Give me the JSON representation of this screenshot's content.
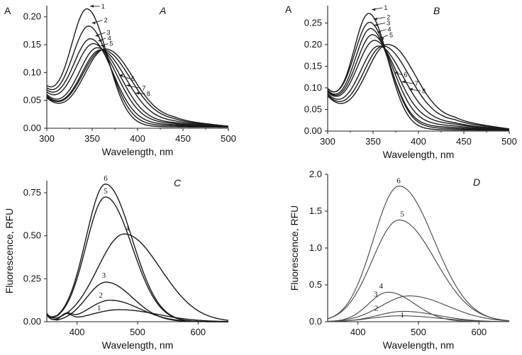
{
  "chart_data": [
    {
      "type": "line",
      "panel": "A",
      "title": "",
      "xlabel": "Wavelength, nm",
      "ylabel": "A",
      "xlim": [
        300,
        500
      ],
      "ylim": [
        0.0,
        0.22
      ],
      "xticks": [
        300,
        350,
        400,
        450,
        500
      ],
      "xtick_labels": [
        "300",
        "350",
        "400",
        "450",
        "500"
      ],
      "yticks": [
        0.0,
        0.05,
        0.1,
        0.15,
        0.2
      ],
      "ytick_labels": [
        "0.00",
        "0.05",
        "0.10",
        "0.15",
        "0.20"
      ],
      "series": [
        {
          "name": "1",
          "peak_x": 345,
          "peak_y": 0.222,
          "width": 19,
          "base": 0.066,
          "tail_amp": 0.0,
          "tail_center": 400,
          "tail_width": 30
        },
        {
          "name": "2",
          "peak_x": 347,
          "peak_y": 0.191,
          "width": 20,
          "base": 0.063,
          "tail_amp": 0.002,
          "tail_center": 400,
          "tail_width": 30
        },
        {
          "name": "3",
          "peak_x": 349,
          "peak_y": 0.168,
          "width": 21,
          "base": 0.06,
          "tail_amp": 0.004,
          "tail_center": 398,
          "tail_width": 30
        },
        {
          "name": "4",
          "peak_x": 352,
          "peak_y": 0.159,
          "width": 22,
          "base": 0.057,
          "tail_amp": 0.006,
          "tail_center": 398,
          "tail_width": 30
        },
        {
          "name": "5",
          "peak_x": 356,
          "peak_y": 0.151,
          "width": 22,
          "base": 0.055,
          "tail_amp": 0.008,
          "tail_center": 396,
          "tail_width": 30
        },
        {
          "name": "6",
          "peak_x": 359,
          "peak_y": 0.145,
          "width": 23,
          "base": 0.053,
          "tail_amp": 0.012,
          "tail_center": 394,
          "tail_width": 28
        },
        {
          "name": "7",
          "peak_x": 361,
          "peak_y": 0.143,
          "width": 24,
          "base": 0.051,
          "tail_amp": 0.016,
          "tail_center": 394,
          "tail_width": 27
        },
        {
          "name": "8",
          "peak_x": 363,
          "peak_y": 0.141,
          "width": 24,
          "base": 0.05,
          "tail_amp": 0.02,
          "tail_center": 392,
          "tail_width": 27
        }
      ],
      "labels": [
        {
          "name": "1",
          "tx": 360,
          "ty": 0.215,
          "ax": 346,
          "ay": 0.219
        },
        {
          "name": "2",
          "tx": 363,
          "ty": 0.19,
          "ax": 348,
          "ay": 0.189
        },
        {
          "name": "3",
          "tx": 366,
          "ty": 0.168,
          "ax": 352,
          "ay": 0.166
        },
        {
          "name": "4",
          "tx": 367,
          "ty": 0.158,
          "ax": 355,
          "ay": 0.157
        },
        {
          "name": "5",
          "tx": 369,
          "ty": 0.148,
          "ax": 358,
          "ay": 0.148
        },
        {
          "name": "6",
          "tx": 393,
          "ty": 0.085,
          "ax": 378,
          "ay": 0.095
        },
        {
          "name": "7",
          "tx": 405,
          "ty": 0.068,
          "ax": 386,
          "ay": 0.077
        },
        {
          "name": "8",
          "tx": 410,
          "ty": 0.058,
          "ax": 396,
          "ay": 0.063
        }
      ]
    },
    {
      "type": "line",
      "panel": "B",
      "title": "",
      "xlabel": "Wavelength, nm",
      "ylabel": "A",
      "xlim": [
        300,
        500
      ],
      "ylim": [
        0.0,
        0.29
      ],
      "xticks": [
        300,
        350,
        400,
        450,
        500
      ],
      "xtick_labels": [
        "300",
        "350",
        "400",
        "450",
        "500"
      ],
      "yticks": [
        0.0,
        0.05,
        0.1,
        0.15,
        0.2,
        0.25
      ],
      "ytick_labels": [
        "0.00",
        "0.05",
        "0.10",
        "0.15",
        "0.20",
        "0.25"
      ],
      "series": [
        {
          "name": "1",
          "peak_x": 346,
          "peak_y": 0.284,
          "width": 18,
          "base": 0.09,
          "tail_amp": 0.0,
          "tail_center": 400,
          "tail_width": 30
        },
        {
          "name": "2",
          "peak_x": 347,
          "peak_y": 0.263,
          "width": 19,
          "base": 0.088,
          "tail_amp": 0.003,
          "tail_center": 398,
          "tail_width": 30
        },
        {
          "name": "3",
          "peak_x": 348,
          "peak_y": 0.248,
          "width": 19,
          "base": 0.086,
          "tail_amp": 0.006,
          "tail_center": 398,
          "tail_width": 30
        },
        {
          "name": "4",
          "peak_x": 350,
          "peak_y": 0.233,
          "width": 20,
          "base": 0.084,
          "tail_amp": 0.01,
          "tail_center": 396,
          "tail_width": 30
        },
        {
          "name": "5",
          "peak_x": 352,
          "peak_y": 0.218,
          "width": 21,
          "base": 0.082,
          "tail_amp": 0.015,
          "tail_center": 394,
          "tail_width": 30
        },
        {
          "name": "6",
          "peak_x": 356,
          "peak_y": 0.203,
          "width": 22,
          "base": 0.08,
          "tail_amp": 0.02,
          "tail_center": 392,
          "tail_width": 28
        },
        {
          "name": "7",
          "peak_x": 360,
          "peak_y": 0.197,
          "width": 23,
          "base": 0.078,
          "tail_amp": 0.028,
          "tail_center": 390,
          "tail_width": 28
        },
        {
          "name": "8",
          "peak_x": 364,
          "peak_y": 0.193,
          "width": 24,
          "base": 0.076,
          "tail_amp": 0.035,
          "tail_center": 388,
          "tail_width": 27
        }
      ],
      "labels": [
        {
          "name": "1",
          "tx": 362,
          "ty": 0.28,
          "ax": 347,
          "ay": 0.281
        },
        {
          "name": "2",
          "tx": 365,
          "ty": 0.258,
          "ax": 349,
          "ay": 0.259
        },
        {
          "name": "3",
          "tx": 365,
          "ty": 0.245,
          "ax": 350,
          "ay": 0.245
        },
        {
          "name": "4",
          "tx": 366,
          "ty": 0.23,
          "ax": 353,
          "ay": 0.229
        },
        {
          "name": "5",
          "tx": 368,
          "ty": 0.217,
          "ax": 356,
          "ay": 0.214
        },
        {
          "name": "6",
          "tx": 384,
          "ty": 0.125,
          "ax": 372,
          "ay": 0.135
        },
        {
          "name": "7",
          "tx": 396,
          "ty": 0.105,
          "ax": 380,
          "ay": 0.114
        },
        {
          "name": "8",
          "tx": 404,
          "ty": 0.088,
          "ax": 388,
          "ay": 0.097
        }
      ]
    },
    {
      "type": "line",
      "panel": "C",
      "title": "",
      "xlabel": "Wavelength, nm",
      "ylabel": "Fluorescence, RFU",
      "xlim": [
        350,
        650
      ],
      "ylim": [
        0.0,
        0.82
      ],
      "xticks": [
        400,
        500,
        600
      ],
      "xtick_labels": [
        "400",
        "500",
        "600"
      ],
      "yticks": [
        0.0,
        0.25,
        0.5,
        0.75
      ],
      "ytick_labels": [
        "0.00",
        "0.25",
        "0.50",
        "0.75"
      ],
      "series": [
        {
          "name": "1",
          "peak_x": 470,
          "peak_y": 0.07,
          "width": 55,
          "base": 0.0
        },
        {
          "name": "2",
          "peak_x": 455,
          "peak_y": 0.125,
          "width": 42,
          "base": 0.0
        },
        {
          "name": "3",
          "peak_x": 448,
          "peak_y": 0.23,
          "width": 38,
          "base": 0.0
        },
        {
          "name": "4",
          "peak_x": 478,
          "peak_y": 0.51,
          "width": 52,
          "base": 0.0
        },
        {
          "name": "5",
          "peak_x": 447,
          "peak_y": 0.725,
          "width": 38,
          "base": 0.0
        },
        {
          "name": "6",
          "peak_x": 447,
          "peak_y": 0.8,
          "width": 38,
          "base": 0.0
        }
      ],
      "labels": [
        {
          "name": "1",
          "tx": 433,
          "ty": 0.065
        },
        {
          "name": "2",
          "tx": 436,
          "ty": 0.14
        },
        {
          "name": "3",
          "tx": 441,
          "ty": 0.255
        },
        {
          "name": "4",
          "tx": 480,
          "ty": 0.53
        },
        {
          "name": "5",
          "tx": 444,
          "ty": 0.745
        },
        {
          "name": "6",
          "tx": 444,
          "ty": 0.82
        }
      ]
    },
    {
      "type": "line",
      "panel": "D",
      "title": "",
      "xlabel": "Wavelength, nm",
      "ylabel": "Fluorescence, RFU",
      "xlim": [
        350,
        650
      ],
      "ylim": [
        0.0,
        2.0
      ],
      "xticks": [
        400,
        500,
        600
      ],
      "xtick_labels": [
        "400",
        "500",
        "600"
      ],
      "yticks": [
        0.0,
        0.5,
        1.0,
        1.5,
        2.0
      ],
      "ytick_labels": [
        "0.0",
        "0.5",
        "1.0",
        "1.5",
        "2.0"
      ],
      "series": [
        {
          "name": "1",
          "peak_x": 470,
          "peak_y": 0.08,
          "width": 55,
          "base": 0.0
        },
        {
          "name": "2",
          "peak_x": 475,
          "peak_y": 0.14,
          "width": 50,
          "base": 0.0
        },
        {
          "name": "3",
          "peak_x": 485,
          "peak_y": 0.35,
          "width": 55,
          "base": 0.0
        },
        {
          "name": "4",
          "peak_x": 450,
          "peak_y": 0.4,
          "width": 38,
          "base": 0.0
        },
        {
          "name": "5",
          "peak_x": 468,
          "peak_y": 1.38,
          "width": 52,
          "base": 0.0
        },
        {
          "name": "6",
          "peak_x": 468,
          "peak_y": 1.84,
          "width": 50,
          "base": 0.0
        }
      ],
      "labels": [
        {
          "name": "1",
          "tx": 470,
          "ty": 0.06
        },
        {
          "name": "2",
          "tx": 427,
          "ty": 0.15
        },
        {
          "name": "3",
          "tx": 426,
          "ty": 0.34
        },
        {
          "name": "4",
          "tx": 435,
          "ty": 0.45
        },
        {
          "name": "5",
          "tx": 470,
          "ty": 1.43
        },
        {
          "name": "6",
          "tx": 464,
          "ty": 1.88
        }
      ]
    }
  ]
}
